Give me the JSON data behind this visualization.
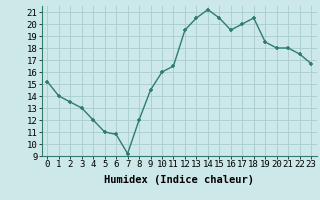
{
  "x": [
    0,
    1,
    2,
    3,
    4,
    5,
    6,
    7,
    8,
    9,
    10,
    11,
    12,
    13,
    14,
    15,
    16,
    17,
    18,
    19,
    20,
    21,
    22,
    23
  ],
  "y": [
    15.2,
    14.0,
    13.5,
    13.0,
    12.0,
    11.0,
    10.8,
    9.2,
    12.0,
    14.5,
    16.0,
    16.5,
    19.5,
    20.5,
    21.2,
    20.5,
    19.5,
    20.0,
    20.5,
    18.5,
    18.0,
    18.0,
    17.5,
    16.7
  ],
  "xlabel": "Humidex (Indice chaleur)",
  "ylim": [
    9,
    21.5
  ],
  "yticks": [
    9,
    10,
    11,
    12,
    13,
    14,
    15,
    16,
    17,
    18,
    19,
    20,
    21
  ],
  "xticks": [
    0,
    1,
    2,
    3,
    4,
    5,
    6,
    7,
    8,
    9,
    10,
    11,
    12,
    13,
    14,
    15,
    16,
    17,
    18,
    19,
    20,
    21,
    22,
    23
  ],
  "line_color": "#2e7d6e",
  "marker_color": "#2e7d6e",
  "bg_color": "#cce8e8",
  "grid_color": "#aacccc",
  "xlabel_fontsize": 7.5,
  "tick_fontsize": 6.5
}
